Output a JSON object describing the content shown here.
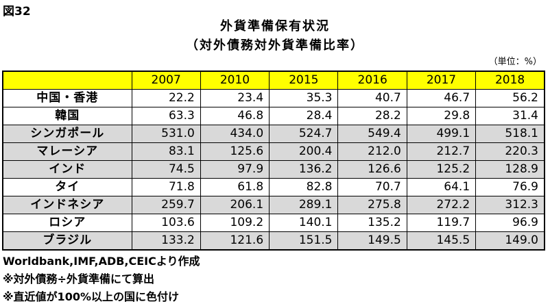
{
  "figure_label": "図32",
  "chart_data": {
    "type": "table",
    "title": "外貨準備保有状況",
    "subtitle": "（対外債務対外貨準備比率）",
    "unit": "（単位：%）",
    "columns": [
      "2007",
      "2010",
      "2015",
      "2016",
      "2017",
      "2018"
    ],
    "rows": [
      {
        "name": "中国・香港",
        "values": [
          "22.2",
          "23.4",
          "35.3",
          "40.7",
          "46.7",
          "56.2"
        ],
        "highlight": false
      },
      {
        "name": "韓国",
        "values": [
          "63.3",
          "46.8",
          "28.4",
          "28.2",
          "29.8",
          "31.4"
        ],
        "highlight": false
      },
      {
        "name": "シンガポール",
        "values": [
          "531.0",
          "434.0",
          "524.7",
          "549.4",
          "499.1",
          "518.1"
        ],
        "highlight": true
      },
      {
        "name": "マレーシア",
        "values": [
          "83.1",
          "125.6",
          "200.4",
          "212.0",
          "212.7",
          "220.3"
        ],
        "highlight": true
      },
      {
        "name": "インド",
        "values": [
          "74.5",
          "97.9",
          "136.2",
          "126.6",
          "125.2",
          "128.9"
        ],
        "highlight": true
      },
      {
        "name": "タイ",
        "values": [
          "71.8",
          "61.8",
          "82.8",
          "70.7",
          "64.1",
          "76.9"
        ],
        "highlight": false
      },
      {
        "name": "インドネシア",
        "values": [
          "259.7",
          "206.1",
          "289.1",
          "275.8",
          "272.2",
          "312.3"
        ],
        "highlight": true
      },
      {
        "name": "ロシア",
        "values": [
          "103.6",
          "109.2",
          "140.1",
          "135.2",
          "119.7",
          "96.9"
        ],
        "highlight": false
      },
      {
        "name": "ブラジル",
        "values": [
          "133.2",
          "121.6",
          "151.5",
          "149.5",
          "145.5",
          "149.0"
        ],
        "highlight": true
      }
    ],
    "colors": {
      "header": "#ffff00",
      "highlight_row": "#d9d9d9"
    }
  },
  "notes": [
    "Worldbank,IMF,ADB,CEICより作成",
    "※対外債務÷外貨準備にて算出",
    "※直近値が100%以上の国に色付け"
  ]
}
